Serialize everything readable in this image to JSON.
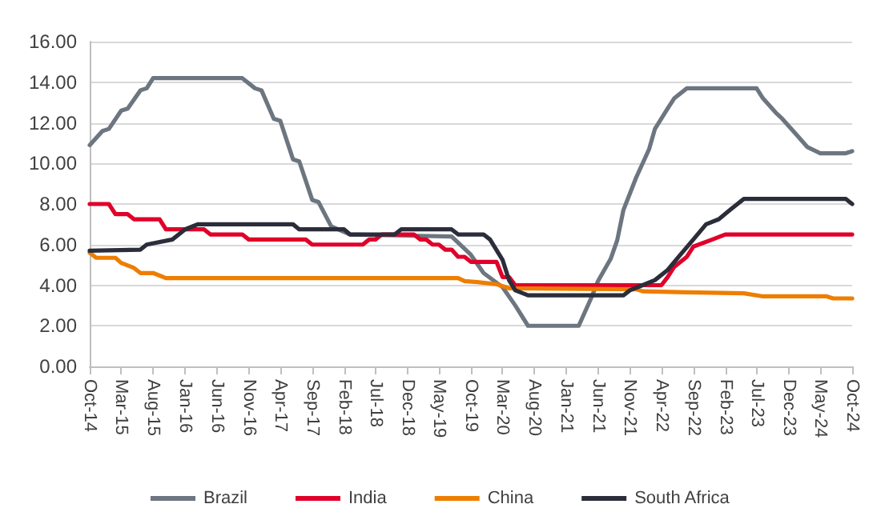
{
  "chart_data": {
    "type": "line",
    "xlim": [
      "2014-10",
      "2024-10"
    ],
    "xticks": [
      {
        "value": "2014-10",
        "label": "Oct-14"
      },
      {
        "value": "2015-03",
        "label": "Mar-15"
      },
      {
        "value": "2015-08",
        "label": "Aug-15"
      },
      {
        "value": "2016-01",
        "label": "Jan-16"
      },
      {
        "value": "2016-06",
        "label": "Jun-16"
      },
      {
        "value": "2016-11",
        "label": "Nov-16"
      },
      {
        "value": "2017-04",
        "label": "Apr-17"
      },
      {
        "value": "2017-09",
        "label": "Sep-17"
      },
      {
        "value": "2018-02",
        "label": "Feb-18"
      },
      {
        "value": "2018-07",
        "label": "Jul-18"
      },
      {
        "value": "2018-12",
        "label": "Dec-18"
      },
      {
        "value": "2019-05",
        "label": "May-19"
      },
      {
        "value": "2019-10",
        "label": "Oct-19"
      },
      {
        "value": "2020-03",
        "label": "Mar-20"
      },
      {
        "value": "2020-08",
        "label": "Aug-20"
      },
      {
        "value": "2021-01",
        "label": "Jan-21"
      },
      {
        "value": "2021-06",
        "label": "Jun-21"
      },
      {
        "value": "2021-11",
        "label": "Nov-21"
      },
      {
        "value": "2022-04",
        "label": "Apr-22"
      },
      {
        "value": "2022-09",
        "label": "Sep-22"
      },
      {
        "value": "2023-02",
        "label": "Feb-23"
      },
      {
        "value": "2023-07",
        "label": "Jul-23"
      },
      {
        "value": "2023-12",
        "label": "Dec-23"
      },
      {
        "value": "2024-05",
        "label": "May-24"
      },
      {
        "value": "2024-10",
        "label": "Oct-24"
      }
    ],
    "ylim": [
      0,
      16
    ],
    "yticks": [
      {
        "value": 0,
        "label": "0.00"
      },
      {
        "value": 2,
        "label": "2.00"
      },
      {
        "value": 4,
        "label": "4.00"
      },
      {
        "value": 6,
        "label": "6.00"
      },
      {
        "value": 8,
        "label": "8.00"
      },
      {
        "value": 10,
        "label": "10.00"
      },
      {
        "value": 12,
        "label": "12.00"
      },
      {
        "value": 14,
        "label": "14.00"
      },
      {
        "value": 16,
        "label": "16.00"
      }
    ],
    "grid": "y",
    "legend": "bottom",
    "marker": "none",
    "line_style": "solid",
    "series": [
      {
        "name": "Brazil",
        "color": "#6d7680",
        "x": [
          "2014-10",
          "2014-12",
          "2015-01",
          "2015-03",
          "2015-04",
          "2015-06",
          "2015-07",
          "2015-08",
          "2016-10",
          "2016-12",
          "2017-01",
          "2017-03",
          "2017-04",
          "2017-06",
          "2017-07",
          "2017-09",
          "2017-10",
          "2017-12",
          "2018-03",
          "2019-07",
          "2019-10",
          "2019-12",
          "2020-03",
          "2020-05",
          "2020-07",
          "2021-03",
          "2021-05",
          "2021-06",
          "2021-08",
          "2021-09",
          "2021-10",
          "2021-12",
          "2022-02",
          "2022-03",
          "2022-05",
          "2022-06",
          "2022-08",
          "2023-07",
          "2023-08",
          "2023-10",
          "2023-11",
          "2024-01",
          "2024-03",
          "2024-05",
          "2024-09",
          "2024-10"
        ],
        "values": [
          10.9,
          11.6,
          11.7,
          12.6,
          12.7,
          13.6,
          13.7,
          14.2,
          14.2,
          13.7,
          13.6,
          12.2,
          12.1,
          10.2,
          10.1,
          8.2,
          8.1,
          6.9,
          6.5,
          6.4,
          5.5,
          4.6,
          3.9,
          3.0,
          2.0,
          2.0,
          3.4,
          4.2,
          5.3,
          6.2,
          7.7,
          9.3,
          10.7,
          11.7,
          12.7,
          13.2,
          13.7,
          13.7,
          13.2,
          12.5,
          12.2,
          11.5,
          10.8,
          10.5,
          10.5,
          10.6
        ]
      },
      {
        "name": "India",
        "color": "#e0002a",
        "x": [
          "2014-10",
          "2015-01",
          "2015-02",
          "2015-04",
          "2015-05",
          "2015-09",
          "2015-10",
          "2016-04",
          "2016-05",
          "2016-10",
          "2016-11",
          "2017-08",
          "2017-09",
          "2018-05",
          "2018-06",
          "2018-07",
          "2018-08",
          "2019-01",
          "2019-02",
          "2019-03",
          "2019-04",
          "2019-05",
          "2019-06",
          "2019-07",
          "2019-08",
          "2019-09",
          "2019-10",
          "2020-02",
          "2020-03",
          "2020-04",
          "2020-05",
          "2022-04",
          "2022-05",
          "2022-06",
          "2022-08",
          "2022-09",
          "2022-12",
          "2023-02",
          "2024-10"
        ],
        "values": [
          8.0,
          8.0,
          7.5,
          7.5,
          7.25,
          7.25,
          6.75,
          6.75,
          6.5,
          6.5,
          6.25,
          6.25,
          6.0,
          6.0,
          6.25,
          6.25,
          6.5,
          6.5,
          6.25,
          6.25,
          6.0,
          6.0,
          5.75,
          5.75,
          5.4,
          5.4,
          5.15,
          5.15,
          4.4,
          4.4,
          4.0,
          4.0,
          4.4,
          4.9,
          5.4,
          5.9,
          6.25,
          6.5,
          6.5
        ]
      },
      {
        "name": "China",
        "color": "#ee7d00",
        "x": [
          "2014-10",
          "2014-11",
          "2015-02",
          "2015-03",
          "2015-05",
          "2015-06",
          "2015-08",
          "2015-10",
          "2019-08",
          "2019-09",
          "2019-11",
          "2020-02",
          "2020-04",
          "2021-12",
          "2022-01",
          "2022-08",
          "2023-05",
          "2023-08",
          "2024-06",
          "2024-07",
          "2024-10"
        ],
        "values": [
          5.6,
          5.35,
          5.35,
          5.1,
          4.85,
          4.6,
          4.6,
          4.35,
          4.35,
          4.2,
          4.15,
          4.05,
          3.85,
          3.8,
          3.7,
          3.65,
          3.6,
          3.45,
          3.45,
          3.35,
          3.35
        ]
      },
      {
        "name": "South Africa",
        "color": "#2b2d3a",
        "x": [
          "2014-10",
          "2015-06",
          "2015-07",
          "2015-11",
          "2016-01",
          "2016-03",
          "2017-06",
          "2017-07",
          "2018-02",
          "2018-03",
          "2018-10",
          "2018-11",
          "2019-07",
          "2019-08",
          "2019-12",
          "2020-01",
          "2020-03",
          "2020-04",
          "2020-05",
          "2020-07",
          "2021-10",
          "2021-11",
          "2022-01",
          "2022-03",
          "2022-05",
          "2022-07",
          "2022-09",
          "2022-11",
          "2023-01",
          "2023-03",
          "2023-05",
          "2024-09",
          "2024-10"
        ],
        "values": [
          5.7,
          5.75,
          6.0,
          6.25,
          6.75,
          7.0,
          7.0,
          6.75,
          6.75,
          6.5,
          6.5,
          6.75,
          6.75,
          6.5,
          6.5,
          6.25,
          5.25,
          4.25,
          3.75,
          3.5,
          3.5,
          3.75,
          4.0,
          4.25,
          4.75,
          5.5,
          6.25,
          7.0,
          7.25,
          7.75,
          8.25,
          8.25,
          8.0
        ]
      }
    ]
  }
}
